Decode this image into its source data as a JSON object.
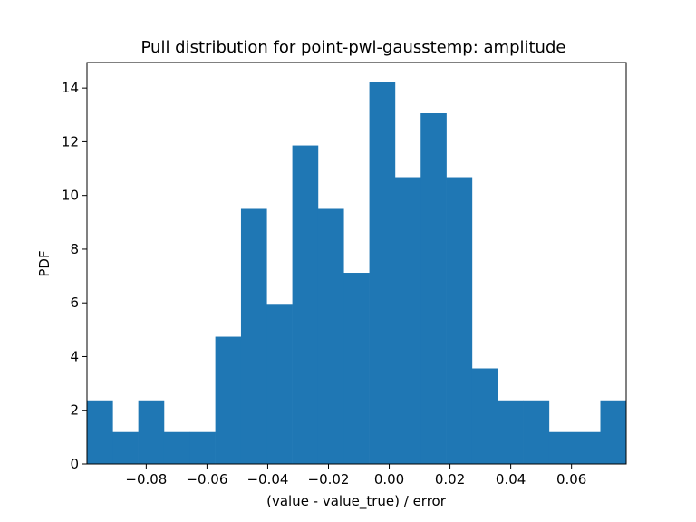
{
  "chart_data": {
    "type": "bar",
    "title": "Pull distribution for point-pwl-gausstemp: amplitude",
    "xlabel": "(value - value_true) / error",
    "ylabel": "PDF",
    "xlim": [
      -0.0995,
      0.078
    ],
    "ylim": [
      0,
      14.95
    ],
    "bar_color": "#1f77b4",
    "bin_edges": [
      -0.0995,
      -0.09105,
      -0.0826,
      -0.07415,
      -0.0657,
      -0.05725,
      -0.0488,
      -0.04035,
      -0.0319,
      -0.02345,
      -0.015,
      -0.00655,
      0.0019,
      0.01035,
      0.0188,
      0.02725,
      0.0357,
      0.04415,
      0.0526,
      0.06105,
      0.0695,
      0.078
    ],
    "values": [
      2.37,
      1.19,
      2.37,
      1.19,
      1.19,
      4.74,
      9.5,
      5.93,
      11.86,
      9.5,
      7.12,
      14.24,
      10.68,
      13.06,
      10.68,
      3.56,
      2.37,
      2.37,
      1.19,
      1.19,
      2.37
    ],
    "x_ticks": [
      {
        "value": -0.08,
        "label": "−0.08"
      },
      {
        "value": -0.06,
        "label": "−0.06"
      },
      {
        "value": -0.04,
        "label": "−0.04"
      },
      {
        "value": -0.02,
        "label": "−0.02"
      },
      {
        "value": 0.0,
        "label": "0.00"
      },
      {
        "value": 0.02,
        "label": "0.02"
      },
      {
        "value": 0.04,
        "label": "0.04"
      },
      {
        "value": 0.06,
        "label": "0.06"
      }
    ],
    "y_ticks": [
      {
        "value": 0,
        "label": "0"
      },
      {
        "value": 2,
        "label": "2"
      },
      {
        "value": 4,
        "label": "4"
      },
      {
        "value": 6,
        "label": "6"
      },
      {
        "value": 8,
        "label": "8"
      },
      {
        "value": 10,
        "label": "10"
      },
      {
        "value": 12,
        "label": "12"
      },
      {
        "value": 14,
        "label": "14"
      }
    ],
    "grid": false,
    "legend": "none"
  }
}
